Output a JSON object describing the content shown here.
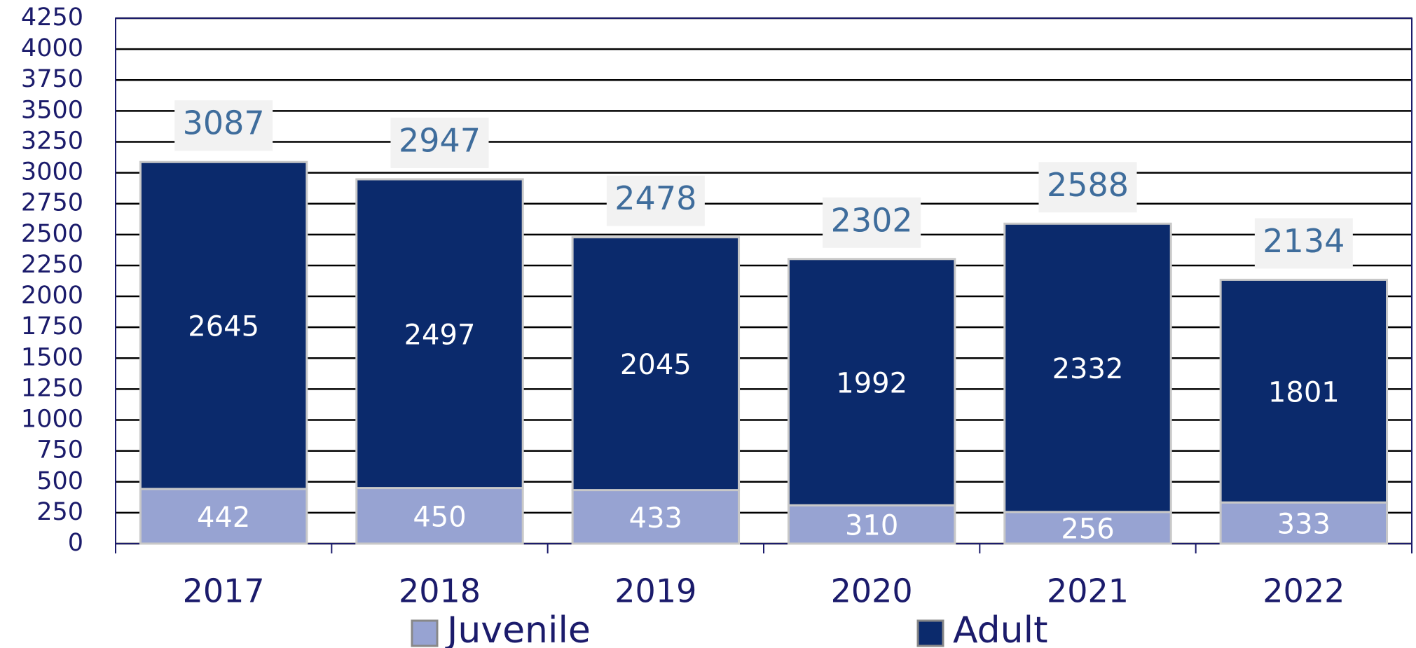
{
  "chart_data": {
    "type": "stacked_bar",
    "categories": [
      "2017",
      "2018",
      "2019",
      "2020",
      "2021",
      "2022"
    ],
    "series": [
      {
        "name": "Juvenile",
        "color": "#97a3d2",
        "values": [
          442,
          450,
          433,
          310,
          256,
          333
        ]
      },
      {
        "name": "Adult",
        "color": "#0b2a6c",
        "values": [
          2645,
          2497,
          2045,
          1992,
          2332,
          1801
        ]
      }
    ],
    "totals": [
      3087,
      2947,
      2478,
      2302,
      2588,
      2134
    ],
    "ylim": [
      0,
      4250
    ],
    "yticks": [
      0,
      250,
      500,
      750,
      1000,
      1250,
      1500,
      1750,
      2000,
      2250,
      2500,
      2750,
      3000,
      3250,
      3500,
      3750,
      4000,
      4250
    ],
    "grid": true,
    "legend": "bottom"
  }
}
